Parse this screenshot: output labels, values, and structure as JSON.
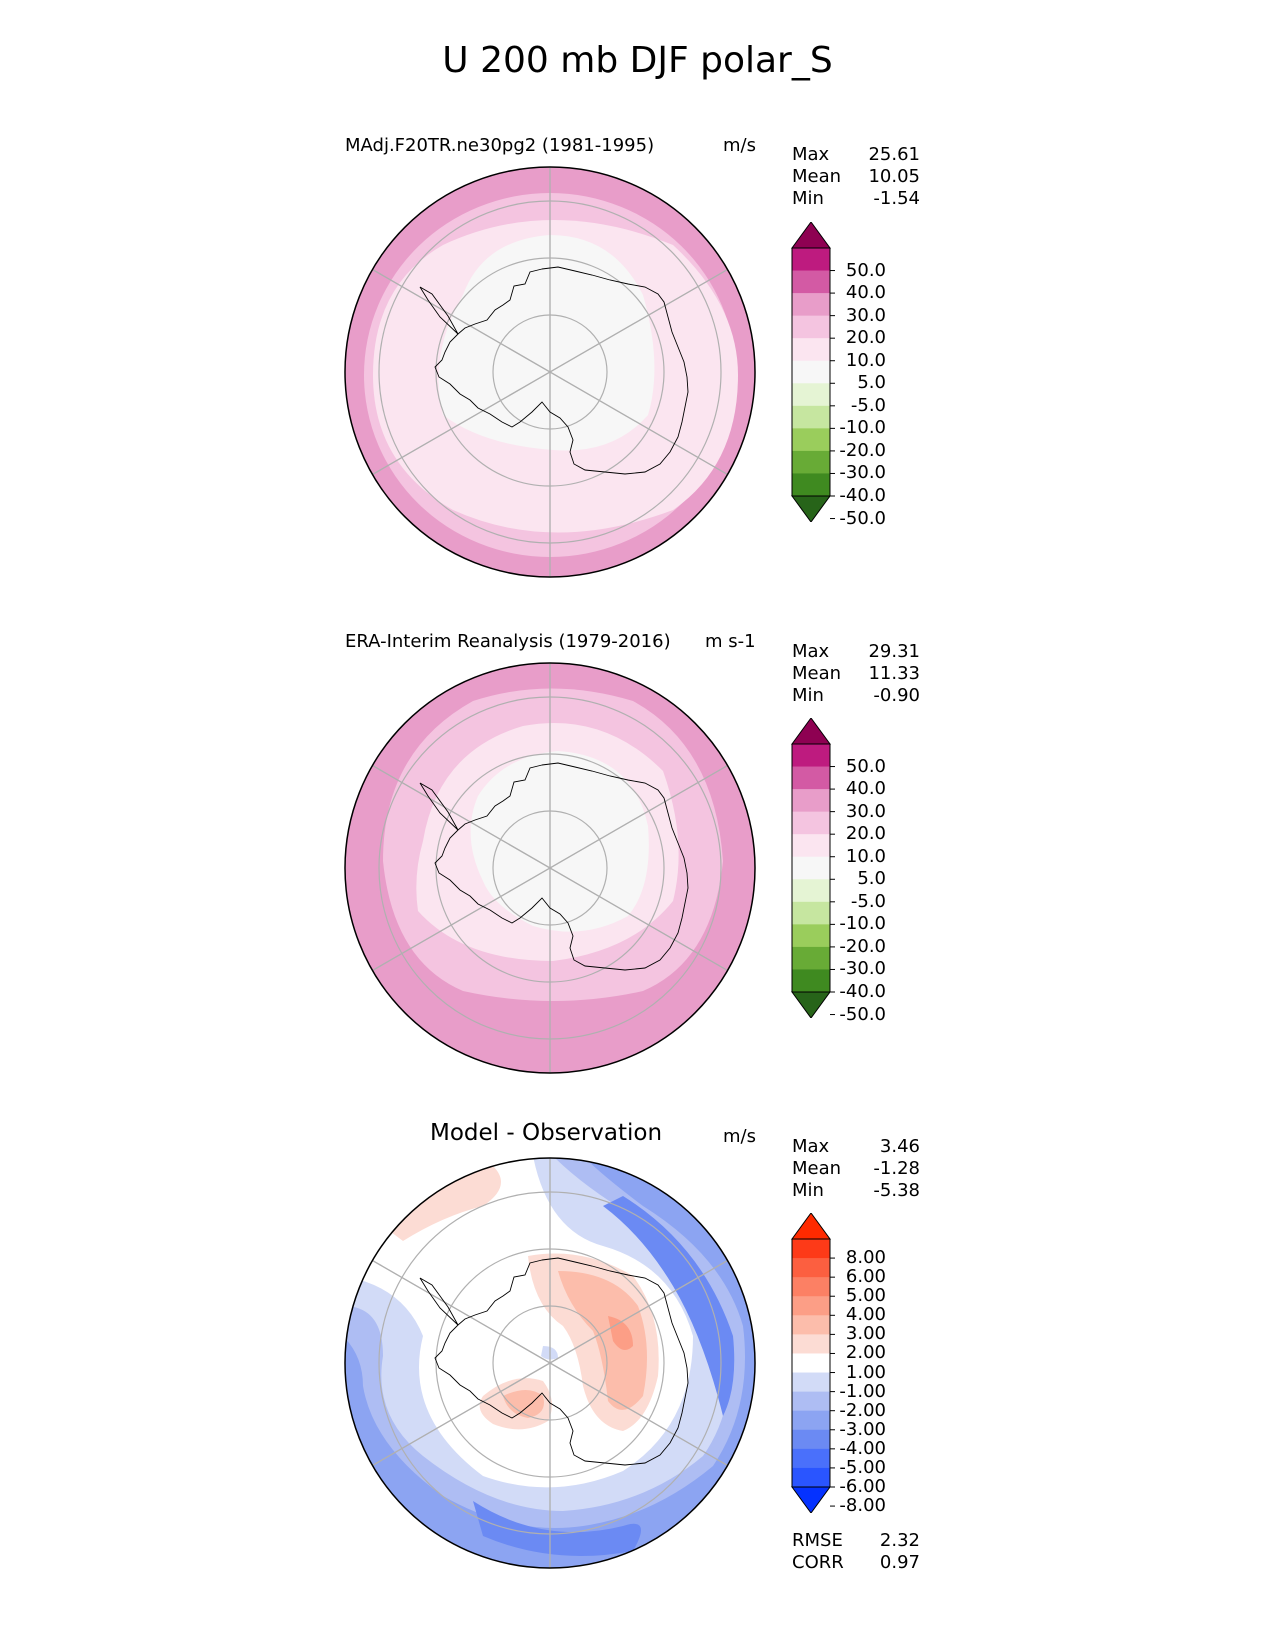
{
  "page_title": "U 200 mb DJF polar_S",
  "colors": {
    "bg": "#ffffff",
    "grid": "#b0b0b0",
    "coast": "#000000"
  },
  "chart_data": [
    {
      "type": "heatmap",
      "panel": "test",
      "title": "MAdj.F20TR.ne30pg2 (1981-1995)",
      "units": "m/s",
      "stats": [
        {
          "label": "Max",
          "value": "25.61"
        },
        {
          "label": "Mean",
          "value": "10.05"
        },
        {
          "label": "Min",
          "value": "-1.54"
        }
      ],
      "colorbar": {
        "levels": [
          -50,
          -40,
          -30,
          -20,
          -10,
          -5,
          5,
          10,
          20,
          30,
          40,
          50
        ],
        "tick_labels": [
          "-50.0",
          "-40.0",
          "-30.0",
          "-20.0",
          "-10.0",
          "-5.0",
          "5.0",
          "10.0",
          "20.0",
          "30.0",
          "40.0",
          "50.0"
        ],
        "colors": [
          "#276419",
          "#3f8a20",
          "#68ab36",
          "#9acd5c",
          "#c6e6a0",
          "#e5f4d4",
          "#f7f7f7",
          "#fbe5f0",
          "#f4c4e0",
          "#e89dc9",
          "#d35aa4",
          "#be1b7f",
          "#8e0152"
        ],
        "extend": "both"
      },
      "bands": [
        {
          "value_range": [
            5,
            10
          ],
          "color": "#fbe5f0"
        },
        {
          "value_range": [
            10,
            20
          ],
          "color": "#f4c4e0"
        },
        {
          "value_range": [
            20,
            30
          ],
          "color": "#e89dc9"
        }
      ]
    },
    {
      "type": "heatmap",
      "panel": "reference",
      "title": "ERA-Interim Reanalysis (1979-2016)",
      "units": "m s-1",
      "stats": [
        {
          "label": "Max",
          "value": "29.31"
        },
        {
          "label": "Mean",
          "value": "11.33"
        },
        {
          "label": "Min",
          "value": "-0.90"
        }
      ],
      "colorbar": {
        "levels": [
          -50,
          -40,
          -30,
          -20,
          -10,
          -5,
          5,
          10,
          20,
          30,
          40,
          50
        ],
        "tick_labels": [
          "-50.0",
          "-40.0",
          "-30.0",
          "-20.0",
          "-10.0",
          "-5.0",
          "5.0",
          "10.0",
          "20.0",
          "30.0",
          "40.0",
          "50.0"
        ],
        "colors": [
          "#276419",
          "#3f8a20",
          "#68ab36",
          "#9acd5c",
          "#c6e6a0",
          "#e5f4d4",
          "#f7f7f7",
          "#fbe5f0",
          "#f4c4e0",
          "#e89dc9",
          "#d35aa4",
          "#be1b7f",
          "#8e0152"
        ],
        "extend": "both"
      }
    },
    {
      "type": "heatmap",
      "panel": "difference",
      "title": "Model - Observation",
      "units": "m/s",
      "stats": [
        {
          "label": "Max",
          "value": "3.46"
        },
        {
          "label": "Mean",
          "value": "-1.28"
        },
        {
          "label": "Min",
          "value": "-5.38"
        }
      ],
      "metrics": [
        {
          "label": "RMSE",
          "value": "2.32"
        },
        {
          "label": "CORR",
          "value": "0.97"
        }
      ],
      "colorbar": {
        "levels": [
          -8,
          -6,
          -5,
          -4,
          -3,
          -2,
          -1,
          1,
          2,
          3,
          4,
          5,
          6,
          8
        ],
        "tick_labels": [
          "-8.00",
          "-6.00",
          "-5.00",
          "-4.00",
          "-3.00",
          "-2.00",
          "-1.00",
          "1.00",
          "2.00",
          "3.00",
          "4.00",
          "5.00",
          "6.00",
          "8.00"
        ],
        "colors": [
          "#0532ff",
          "#2a55ff",
          "#4a70fb",
          "#6b8af3",
          "#8ca4f2",
          "#aebdf3",
          "#d2dbf7",
          "#ffffff",
          "#fcdcd4",
          "#fcbdab",
          "#fc9e86",
          "#fc8064",
          "#fc5f40",
          "#fd3a18",
          "#ff2a00"
        ],
        "extend": "both"
      }
    }
  ]
}
